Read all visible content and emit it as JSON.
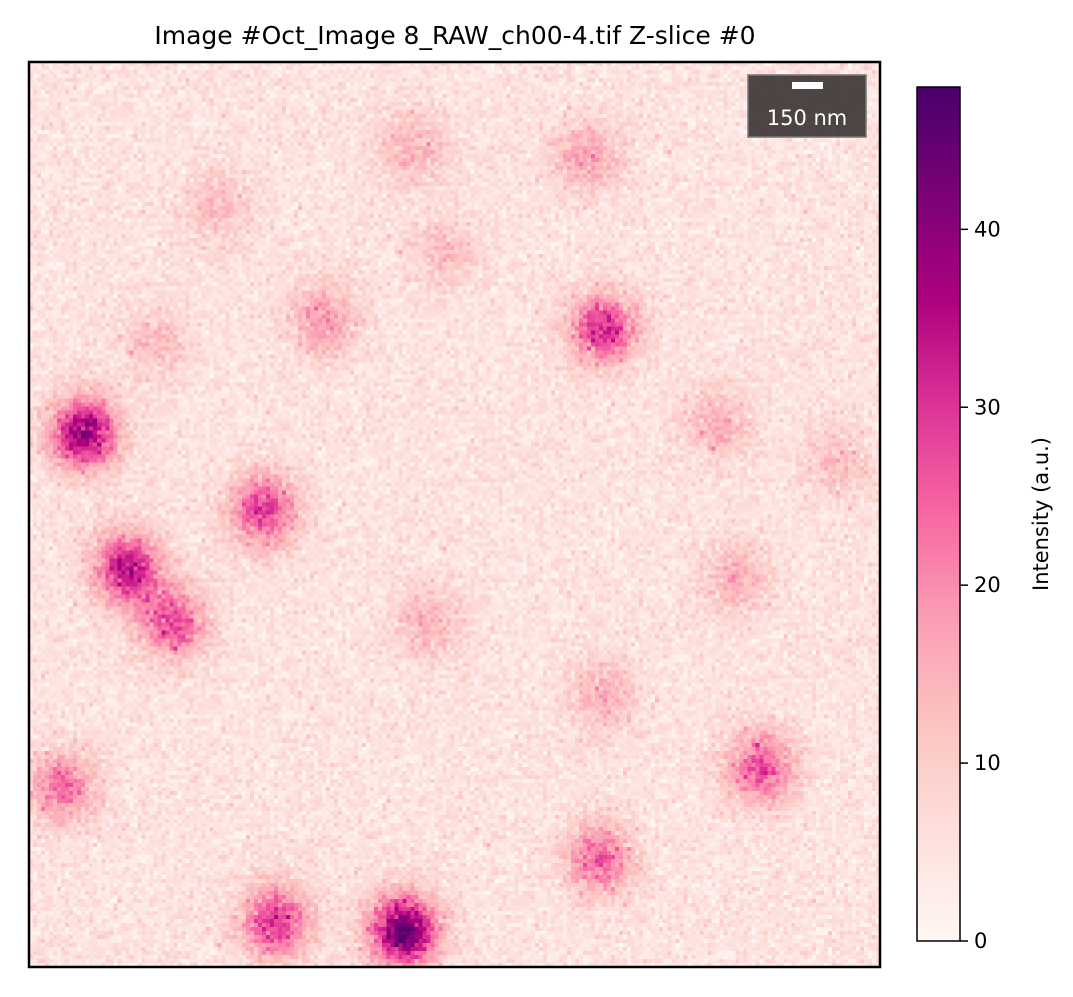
{
  "chart_data": {
    "type": "heatmap",
    "title": "Image #Oct_Image 8_RAW_ch00-4.tif Z-slice #0",
    "xlabel": "",
    "ylabel": "",
    "axes_visible": false,
    "grid": false,
    "colormap": "RdPu",
    "colors": [
      "#fff7f3",
      "#fde0dd",
      "#fcc5c0",
      "#fa9fb5",
      "#f768a1",
      "#dd3497",
      "#ae017e",
      "#7a0177",
      "#49006a"
    ],
    "background_level": 5,
    "spots": [
      {
        "x": 0.065,
        "y": 0.41,
        "peak": 34
      },
      {
        "x": 0.115,
        "y": 0.56,
        "peak": 30
      },
      {
        "x": 0.17,
        "y": 0.62,
        "peak": 22
      },
      {
        "x": 0.275,
        "y": 0.495,
        "peak": 24
      },
      {
        "x": 0.345,
        "y": 0.285,
        "peak": 14
      },
      {
        "x": 0.45,
        "y": 0.095,
        "peak": 10
      },
      {
        "x": 0.22,
        "y": 0.16,
        "peak": 8
      },
      {
        "x": 0.15,
        "y": 0.31,
        "peak": 8
      },
      {
        "x": 0.49,
        "y": 0.21,
        "peak": 8
      },
      {
        "x": 0.655,
        "y": 0.105,
        "peak": 12
      },
      {
        "x": 0.675,
        "y": 0.295,
        "peak": 26
      },
      {
        "x": 0.47,
        "y": 0.62,
        "peak": 10
      },
      {
        "x": 0.675,
        "y": 0.7,
        "peak": 10
      },
      {
        "x": 0.81,
        "y": 0.4,
        "peak": 10
      },
      {
        "x": 0.83,
        "y": 0.57,
        "peak": 10
      },
      {
        "x": 0.86,
        "y": 0.78,
        "peak": 22
      },
      {
        "x": 0.67,
        "y": 0.88,
        "peak": 20
      },
      {
        "x": 0.29,
        "y": 0.95,
        "peak": 26
      },
      {
        "x": 0.44,
        "y": 0.96,
        "peak": 40
      },
      {
        "x": 0.04,
        "y": 0.8,
        "peak": 18
      },
      {
        "x": 0.95,
        "y": 0.44,
        "peak": 8
      }
    ],
    "scalebar": {
      "label": "150 nm",
      "position": "top-right"
    },
    "colorbar": {
      "label": "Intensity (a.u.)",
      "vmin": 0,
      "vmax": 48,
      "ticks": [
        0,
        10,
        20,
        30,
        40
      ],
      "tick_labels": [
        "0",
        "10",
        "20",
        "30",
        "40"
      ]
    }
  }
}
